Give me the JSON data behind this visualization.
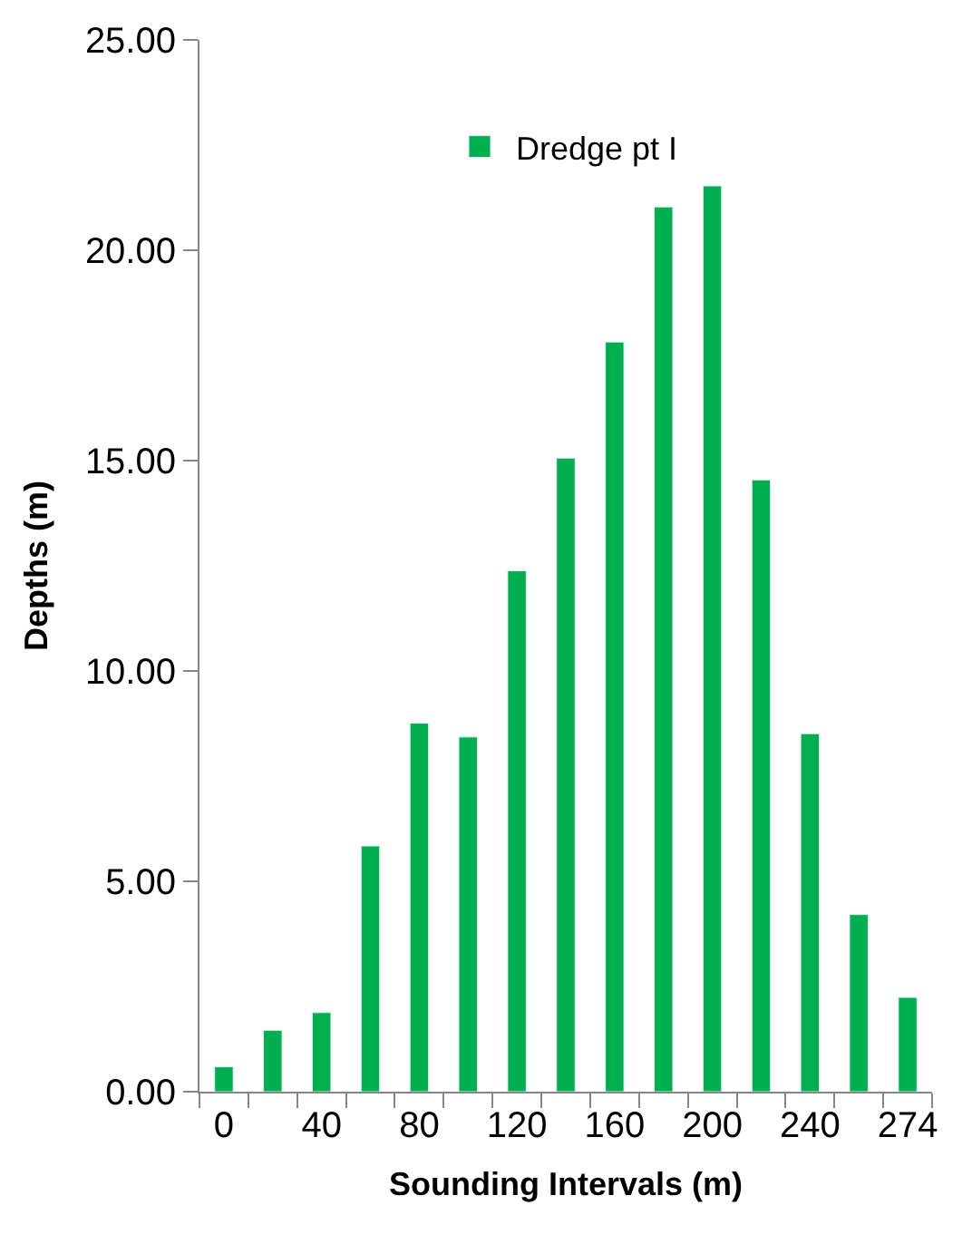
{
  "chart_data": {
    "type": "bar",
    "xlabel": "Sounding Intervals (m)",
    "ylabel": "Depths (m)",
    "categories": [
      "0",
      null,
      "40",
      null,
      "80",
      null,
      "120",
      null,
      "160",
      null,
      "200",
      null,
      "240",
      null,
      "274"
    ],
    "series": [
      {
        "name": "Dredge pt I",
        "color": "#00b050",
        "values": [
          0.59,
          1.46,
          1.88,
          5.84,
          8.76,
          8.43,
          12.38,
          15.06,
          17.82,
          21.03,
          21.53,
          14.54,
          8.51,
          4.21,
          2.24
        ]
      }
    ],
    "ylim": [
      0,
      25
    ],
    "yticks": [
      {
        "value": 0,
        "label": "0.00"
      },
      {
        "value": 5,
        "label": "5.00"
      },
      {
        "value": 10,
        "label": "10.00"
      },
      {
        "value": 15,
        "label": "15.00"
      },
      {
        "value": 20,
        "label": "20.00"
      },
      {
        "value": 25,
        "label": "25.00"
      }
    ],
    "legend": "top"
  }
}
